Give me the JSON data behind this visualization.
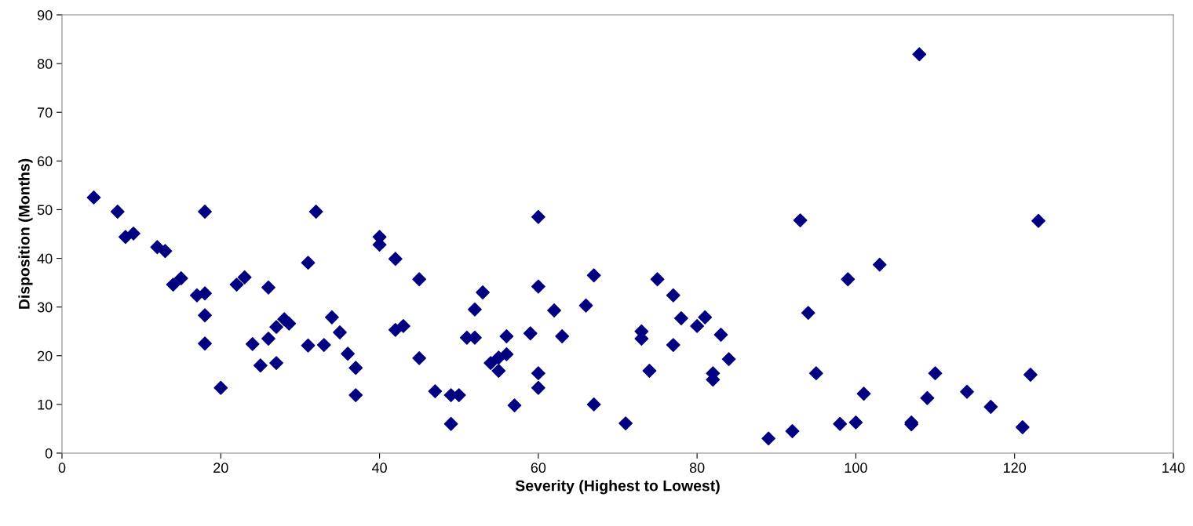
{
  "chart_data": {
    "type": "scatter",
    "xlabel": "Severity (Highest to Lowest)",
    "ylabel": "Disposition (Months)",
    "marker": "diamond",
    "grid": false,
    "legend": false,
    "xlim": [
      0,
      140
    ],
    "xticks": [
      0,
      20,
      40,
      60,
      80,
      100,
      120,
      140
    ],
    "ylim": [
      0,
      90
    ],
    "yticks": [
      0,
      10,
      20,
      30,
      40,
      50,
      60,
      70,
      80,
      90
    ],
    "series": [
      {
        "color": "#000080",
        "x": [
          4,
          7,
          8,
          9,
          12,
          13,
          14,
          15,
          17,
          18,
          18,
          18,
          18,
          20,
          22,
          23,
          24,
          25,
          26,
          26,
          27,
          27,
          28,
          28.6,
          31,
          31,
          32,
          33,
          34,
          35,
          36,
          37,
          37,
          40,
          40,
          42,
          42,
          43,
          45,
          45,
          47,
          49,
          49,
          50,
          51,
          52,
          52,
          53,
          54,
          55,
          55,
          56,
          56,
          57,
          59,
          60,
          60,
          60,
          60,
          62,
          63,
          66,
          67,
          67,
          71,
          73,
          73,
          74,
          75,
          77,
          77,
          78,
          80,
          81,
          82,
          82,
          83,
          84,
          89,
          92,
          93,
          94,
          95,
          98,
          99,
          100,
          101,
          103,
          107,
          107,
          108,
          109,
          110,
          114,
          117,
          121,
          122,
          123
        ],
        "values": [
          52.5,
          49.6,
          44.4,
          45.1,
          42.3,
          41.5,
          34.6,
          35.9,
          32.4,
          32.8,
          49.6,
          28.3,
          22.5,
          13.4,
          34.6,
          36.1,
          22.4,
          18.0,
          34.0,
          23.5,
          25.9,
          18.5,
          27.5,
          26.6,
          22.1,
          39.1,
          49.6,
          22.2,
          27.9,
          24.8,
          20.4,
          17.5,
          11.9,
          44.4,
          42.8,
          39.9,
          25.3,
          26.1,
          35.7,
          19.5,
          12.7,
          11.9,
          6.0,
          11.9,
          23.7,
          29.5,
          23.7,
          33.0,
          18.5,
          19.6,
          16.9,
          24.0,
          20.3,
          9.8,
          24.6,
          34.2,
          48.5,
          16.4,
          13.4,
          29.3,
          24.0,
          30.3,
          36.5,
          10.0,
          6.1,
          25.0,
          23.5,
          16.9,
          35.7,
          32.4,
          22.2,
          27.7,
          26.1,
          27.9,
          16.4,
          15.1,
          24.3,
          19.3,
          3.0,
          4.5,
          47.8,
          28.8,
          16.4,
          6.0,
          35.7,
          6.3,
          12.2,
          38.7,
          6.3,
          5.9,
          81.9,
          11.3,
          16.4,
          12.6,
          9.5,
          5.3,
          16.1,
          47.7
        ]
      }
    ]
  }
}
